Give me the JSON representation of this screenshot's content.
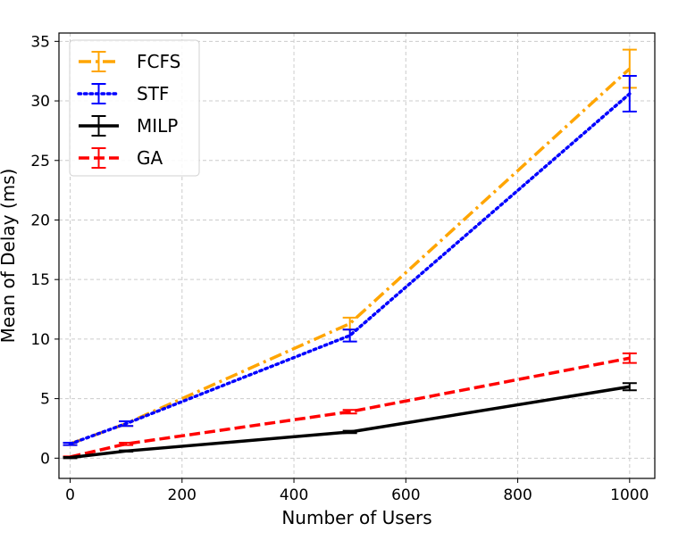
{
  "chart_data": {
    "type": "line",
    "xlabel": "Number of Users",
    "ylabel": "Mean of Delay (ms)",
    "xlim": [
      -20,
      1045
    ],
    "ylim": [
      -1.7,
      35.7
    ],
    "xticks": [
      0,
      200,
      400,
      600,
      800,
      1000
    ],
    "yticks": [
      0,
      5,
      10,
      15,
      20,
      25,
      30,
      35
    ],
    "grid": true,
    "legend_position": "upper-left",
    "series": [
      {
        "name": "FCFS",
        "color": "#FFA500",
        "linestyle": "dashdot",
        "points": [
          {
            "x": 0,
            "y": 1.2,
            "err": 0.1
          },
          {
            "x": 100,
            "y": 2.9,
            "err": 0.2
          },
          {
            "x": 500,
            "y": 11.3,
            "err": 0.5
          },
          {
            "x": 1000,
            "y": 32.7,
            "err": 1.6
          }
        ]
      },
      {
        "name": "STF",
        "color": "#0000FF",
        "linestyle": "dotted",
        "points": [
          {
            "x": 0,
            "y": 1.2,
            "err": 0.1
          },
          {
            "x": 100,
            "y": 2.9,
            "err": 0.2
          },
          {
            "x": 500,
            "y": 10.3,
            "err": 0.5
          },
          {
            "x": 1000,
            "y": 30.6,
            "err": 1.5
          }
        ]
      },
      {
        "name": "MILP",
        "color": "#000000",
        "linestyle": "solid",
        "points": [
          {
            "x": 0,
            "y": 0.05,
            "err": 0.05
          },
          {
            "x": 100,
            "y": 0.6,
            "err": 0.05
          },
          {
            "x": 500,
            "y": 2.2,
            "err": 0.1
          },
          {
            "x": 1000,
            "y": 6.0,
            "err": 0.3
          }
        ]
      },
      {
        "name": "GA",
        "color": "#FF0000",
        "linestyle": "dashed",
        "points": [
          {
            "x": 0,
            "y": 0.1,
            "err": 0.05
          },
          {
            "x": 100,
            "y": 1.2,
            "err": 0.1
          },
          {
            "x": 500,
            "y": 3.9,
            "err": 0.15
          },
          {
            "x": 1000,
            "y": 8.4,
            "err": 0.4
          }
        ]
      }
    ]
  }
}
